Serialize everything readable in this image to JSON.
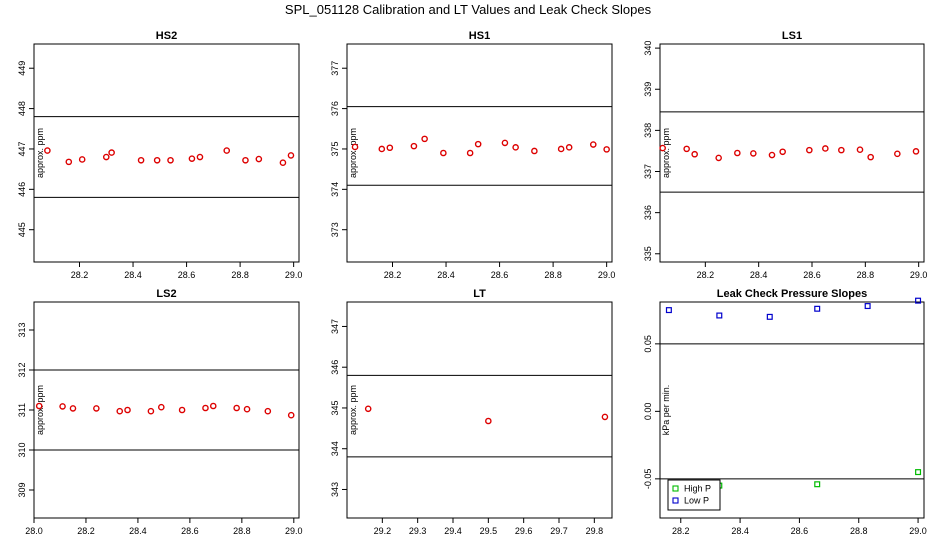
{
  "title": "SPL_051128  Calibration and LT Values and Leak Check Slopes",
  "colors": {
    "points": "#dd0000",
    "high_p": "#00bb00",
    "low_p": "#0000cc",
    "axes": "#000000"
  },
  "chart_data": [
    {
      "type": "scatter",
      "title": "HS2",
      "ylabel": "approx. ppm",
      "xlim": [
        28.03,
        29.02
      ],
      "ylim": [
        444.2,
        449.6
      ],
      "xticks": [
        28.2,
        28.4,
        28.6,
        28.8,
        29.0
      ],
      "xtick_labels": [
        "28.2",
        "28.4",
        "28.6",
        "28.8",
        "29.0"
      ],
      "yticks": [
        445,
        446,
        447,
        448,
        449
      ],
      "ytick_labels": [
        "445",
        "446",
        "447",
        "448",
        "449"
      ],
      "hlines": [
        447.8,
        445.8
      ],
      "points": [
        [
          28.08,
          446.96
        ],
        [
          28.16,
          446.68
        ],
        [
          28.21,
          446.74
        ],
        [
          28.3,
          446.8
        ],
        [
          28.32,
          446.91
        ],
        [
          28.43,
          446.72
        ],
        [
          28.49,
          446.72
        ],
        [
          28.54,
          446.72
        ],
        [
          28.62,
          446.76
        ],
        [
          28.65,
          446.8
        ],
        [
          28.75,
          446.96
        ],
        [
          28.82,
          446.72
        ],
        [
          28.87,
          446.75
        ],
        [
          28.96,
          446.66
        ],
        [
          28.99,
          446.84
        ]
      ]
    },
    {
      "type": "scatter",
      "title": "HS1",
      "ylabel": "approx. ppm",
      "xlim": [
        28.03,
        29.02
      ],
      "ylim": [
        372.2,
        377.6
      ],
      "xticks": [
        28.2,
        28.4,
        28.6,
        28.8,
        29.0
      ],
      "xtick_labels": [
        "28.2",
        "28.4",
        "28.6",
        "28.8",
        "29.0"
      ],
      "yticks": [
        373,
        374,
        375,
        376,
        377
      ],
      "ytick_labels": [
        "373",
        "374",
        "375",
        "376",
        "377"
      ],
      "hlines": [
        376.05,
        374.1
      ],
      "points": [
        [
          28.06,
          375.05
        ],
        [
          28.16,
          375
        ],
        [
          28.19,
          375.03
        ],
        [
          28.28,
          375.07
        ],
        [
          28.32,
          375.25
        ],
        [
          28.39,
          374.9
        ],
        [
          28.49,
          374.9
        ],
        [
          28.52,
          375.12
        ],
        [
          28.62,
          375.15
        ],
        [
          28.66,
          375.04
        ],
        [
          28.73,
          374.95
        ],
        [
          28.83,
          375
        ],
        [
          28.86,
          375.04
        ],
        [
          28.95,
          375.11
        ],
        [
          29.0,
          374.99
        ]
      ]
    },
    {
      "type": "scatter",
      "title": "LS1",
      "ylabel": "approx. ppm",
      "xlim": [
        28.03,
        29.02
      ],
      "ylim": [
        334.8,
        340.1
      ],
      "xticks": [
        28.2,
        28.4,
        28.6,
        28.8,
        29.0
      ],
      "xtick_labels": [
        "28.2",
        "28.4",
        "28.6",
        "28.8",
        "29.0"
      ],
      "yticks": [
        335,
        336,
        337,
        338,
        339,
        340
      ],
      "ytick_labels": [
        "335",
        "336",
        "337",
        "338",
        "339",
        "340"
      ],
      "hlines": [
        338.45,
        336.5
      ],
      "points": [
        [
          28.04,
          337.57
        ],
        [
          28.13,
          337.55
        ],
        [
          28.16,
          337.42
        ],
        [
          28.25,
          337.33
        ],
        [
          28.32,
          337.45
        ],
        [
          28.38,
          337.44
        ],
        [
          28.45,
          337.4
        ],
        [
          28.49,
          337.48
        ],
        [
          28.59,
          337.52
        ],
        [
          28.65,
          337.56
        ],
        [
          28.71,
          337.52
        ],
        [
          28.78,
          337.53
        ],
        [
          28.82,
          337.35
        ],
        [
          28.92,
          337.43
        ],
        [
          28.99,
          337.49
        ]
      ]
    },
    {
      "type": "scatter",
      "title": "LS2",
      "ylabel": "approx. ppm",
      "xlim": [
        28.0,
        29.02
      ],
      "ylim": [
        308.3,
        313.7
      ],
      "xticks": [
        28.0,
        28.2,
        28.4,
        28.6,
        28.8,
        29.0
      ],
      "xtick_labels": [
        "28.0",
        "28.2",
        "28.4",
        "28.6",
        "28.8",
        "29.0"
      ],
      "yticks": [
        309,
        310,
        311,
        312,
        313
      ],
      "ytick_labels": [
        "309",
        "310",
        "311",
        "312",
        "313"
      ],
      "hlines": [
        312.0,
        310.0
      ],
      "points": [
        [
          28.02,
          311.1
        ],
        [
          28.11,
          311.09
        ],
        [
          28.15,
          311.04
        ],
        [
          28.24,
          311.04
        ],
        [
          28.33,
          310.97
        ],
        [
          28.36,
          311.0
        ],
        [
          28.45,
          310.97
        ],
        [
          28.49,
          311.07
        ],
        [
          28.57,
          311.0
        ],
        [
          28.66,
          311.05
        ],
        [
          28.69,
          311.1
        ],
        [
          28.78,
          311.05
        ],
        [
          28.82,
          311.02
        ],
        [
          28.9,
          310.97
        ],
        [
          28.99,
          310.87
        ]
      ]
    },
    {
      "type": "scatter",
      "title": "LT",
      "ylabel": "approx. ppm",
      "xlim": [
        29.1,
        29.85
      ],
      "ylim": [
        342.3,
        347.6
      ],
      "xticks": [
        29.2,
        29.3,
        29.4,
        29.5,
        29.6,
        29.7,
        29.8
      ],
      "xtick_labels": [
        "29.2",
        "29.3",
        "29.4",
        "29.5",
        "29.6",
        "29.7",
        "29.8"
      ],
      "yticks": [
        343,
        344,
        345,
        346,
        347
      ],
      "ytick_labels": [
        "343",
        "344",
        "345",
        "346",
        "347"
      ],
      "hlines": [
        345.8,
        343.8
      ],
      "points": [
        [
          29.16,
          344.98
        ],
        [
          29.5,
          344.68
        ],
        [
          29.83,
          344.78
        ]
      ]
    },
    {
      "type": "scatter",
      "title": "Leak Check Pressure Slopes",
      "ylabel": "kPa per min.",
      "xlim": [
        28.13,
        29.02
      ],
      "ylim": [
        -0.079,
        0.081
      ],
      "xticks": [
        28.2,
        28.4,
        28.6,
        28.8,
        29.0
      ],
      "xtick_labels": [
        "28.2",
        "28.4",
        "28.6",
        "28.8",
        "29.0"
      ],
      "yticks": [
        -0.05,
        0.0,
        0.05
      ],
      "ytick_labels": [
        "-0.05",
        "0.00",
        "0.05"
      ],
      "hlines": [
        0.05,
        -0.05
      ],
      "legend": {
        "position": "bottom-left",
        "entries": [
          "High P",
          "Low P"
        ]
      },
      "series": [
        {
          "name": "High P",
          "marker": "square",
          "color": "#00bb00",
          "points": [
            [
              28.33,
              -0.055
            ],
            [
              28.66,
              -0.054
            ],
            [
              29.0,
              -0.045
            ]
          ]
        },
        {
          "name": "Low P",
          "marker": "square",
          "color": "#0000cc",
          "points": [
            [
              28.16,
              0.075
            ],
            [
              28.33,
              0.071
            ],
            [
              28.5,
              0.07
            ],
            [
              28.66,
              0.076
            ],
            [
              28.83,
              0.078
            ],
            [
              29.0,
              0.082
            ]
          ]
        }
      ]
    }
  ]
}
